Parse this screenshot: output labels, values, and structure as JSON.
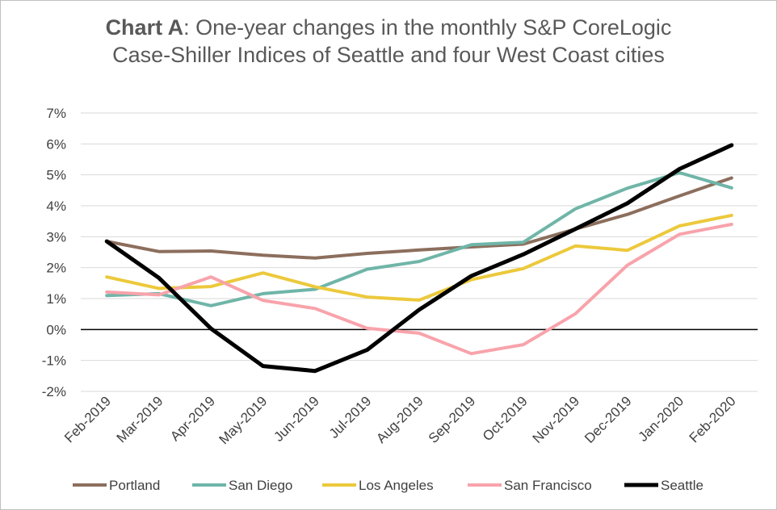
{
  "title": {
    "lead": "Chart A",
    "line1_rest": ": One-year changes in the monthly S&P CoreLogic",
    "line2": "Case-Shiller Indices of Seattle and four West Coast cities"
  },
  "chart_data": {
    "type": "line",
    "categories": [
      "Feb-2019",
      "Mar-2019",
      "Apr-2019",
      "May-2019",
      "Jun-2019",
      "Jul-2019",
      "Aug-2019",
      "Sep-2019",
      "Oct-2019",
      "Nov-2019",
      "Dec-2019",
      "Jan-2020",
      "Feb-2020"
    ],
    "ylim": [
      -2,
      7
    ],
    "y_ticks": [
      -2,
      -1,
      0,
      1,
      2,
      3,
      4,
      5,
      6,
      7
    ],
    "y_tick_labels": [
      "-2%",
      "-1%",
      "0%",
      "1%",
      "2%",
      "3%",
      "4%",
      "5%",
      "6%",
      "7%"
    ],
    "grid": true,
    "legend_position": "bottom",
    "series": [
      {
        "name": "Portland",
        "color": "#8c6e5d",
        "values": [
          2.85,
          2.52,
          2.54,
          2.4,
          2.31,
          2.46,
          2.57,
          2.67,
          2.76,
          3.25,
          3.72,
          4.32,
          4.9
        ]
      },
      {
        "name": "San Diego",
        "color": "#6fb5a8",
        "values": [
          1.1,
          1.16,
          0.77,
          1.16,
          1.3,
          1.95,
          2.2,
          2.74,
          2.82,
          3.9,
          4.57,
          5.07,
          4.58
        ]
      },
      {
        "name": "Los Angeles",
        "color": "#ecc93c",
        "values": [
          1.7,
          1.33,
          1.39,
          1.83,
          1.38,
          1.05,
          0.95,
          1.61,
          1.97,
          2.7,
          2.56,
          3.35,
          3.69
        ]
      },
      {
        "name": "San Francisco",
        "color": "#f8a3ab",
        "values": [
          1.21,
          1.12,
          1.7,
          0.94,
          0.68,
          0.04,
          -0.12,
          -0.78,
          -0.49,
          0.51,
          2.08,
          3.08,
          3.4
        ]
      },
      {
        "name": "Seattle",
        "color": "#000000",
        "values": [
          2.85,
          1.67,
          0.03,
          -1.18,
          -1.34,
          -0.66,
          0.64,
          1.73,
          2.43,
          3.25,
          4.08,
          5.19,
          5.96
        ]
      }
    ]
  }
}
